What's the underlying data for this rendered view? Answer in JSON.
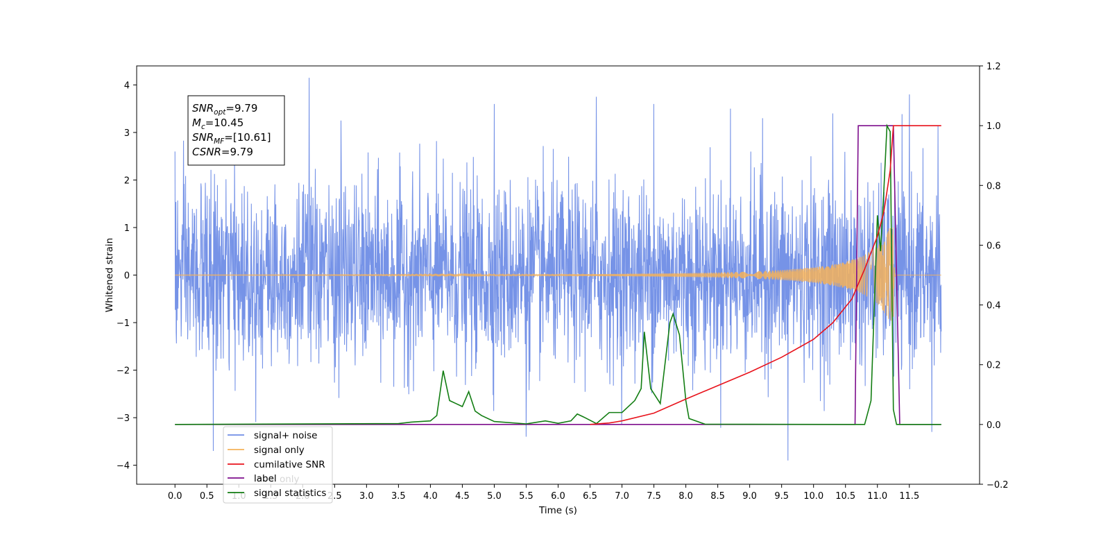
{
  "chart_data": {
    "type": "line",
    "title": "",
    "xlabel": "Time (s)",
    "ylabel": "Whitened strain",
    "xlim": [
      -0.6,
      12.6
    ],
    "ylim": [
      -4.4,
      4.4
    ],
    "y2lim": [
      -0.2,
      1.2
    ],
    "x_ticks": [
      0.0,
      0.5,
      1.0,
      1.5,
      2.0,
      2.5,
      3.0,
      3.5,
      4.0,
      4.5,
      5.0,
      5.5,
      6.0,
      6.5,
      7.0,
      7.5,
      8.0,
      8.5,
      9.0,
      9.5,
      10.0,
      10.5,
      11.0,
      11.5
    ],
    "x_tick_labels": [
      "0.0",
      "0.5",
      "1.0",
      "1.5",
      "2.0",
      "2.5",
      "3.0",
      "3.5",
      "4.0",
      "4.5",
      "5.0",
      "5.5",
      "6.0",
      "6.5",
      "7.0",
      "7.5",
      "8.0",
      "8.5",
      "9.0",
      "9.5",
      "10.0",
      "10.5",
      "11.0",
      "11.5"
    ],
    "y_ticks": [
      4,
      3,
      2,
      1,
      0,
      -1,
      -2,
      -3,
      -4
    ],
    "y_tick_labels": [
      "4",
      "3",
      "2",
      "1",
      "0",
      "−1",
      "−2",
      "−3",
      "−4"
    ],
    "y2_ticks": [
      1.2,
      1.0,
      0.8,
      0.6,
      0.4,
      0.2,
      0.0,
      -0.2
    ],
    "y2_tick_labels": [
      "1.2",
      "1.0",
      "0.8",
      "0.6",
      "0.4",
      "0.2",
      "0.0",
      "−0.2"
    ],
    "annotation": {
      "lines": [
        {
          "main": "SNR",
          "sub": "opt",
          "rest": "=9.79"
        },
        {
          "main": "M",
          "sub": "c",
          "rest": "=10.45"
        },
        {
          "main": "SNR",
          "sub": "MF",
          "rest": "=[10.61]"
        },
        {
          "main": "CSNR",
          "sub": "",
          "rest": "=9.79"
        }
      ]
    },
    "legend_position": "lower-left",
    "series": [
      {
        "name": "signal+ noise",
        "axis": "left",
        "color": "#6f8de6",
        "noise_std": 0.95,
        "t_start": 0.0,
        "t_end": 12.0,
        "spikes": [
          [
            0.0,
            2.6
          ],
          [
            0.6,
            -3.7
          ],
          [
            2.1,
            4.15
          ],
          [
            2.6,
            3.25
          ],
          [
            5.0,
            3.6
          ],
          [
            5.5,
            -3.4
          ],
          [
            6.6,
            3.75
          ],
          [
            7.5,
            3.6
          ],
          [
            8.7,
            3.5
          ],
          [
            9.2,
            3.3
          ],
          [
            9.6,
            -3.9
          ],
          [
            10.3,
            3.4
          ],
          [
            11.5,
            3.8
          ],
          [
            11.85,
            -3.3
          ],
          [
            11.95,
            3.15
          ]
        ]
      },
      {
        "name": "signal only",
        "axis": "left",
        "color": "#f5b25a",
        "t_merger": 11.25,
        "amplitude_at_merger": 1.6,
        "t_end": 12.0
      },
      {
        "name": "cumilative SNR",
        "axis": "right",
        "color": "#e8121b",
        "points": [
          [
            6.5,
            0.0
          ],
          [
            6.8,
            0.005
          ],
          [
            7.0,
            0.012
          ],
          [
            7.5,
            0.038
          ],
          [
            8.0,
            0.085
          ],
          [
            8.5,
            0.13
          ],
          [
            9.0,
            0.175
          ],
          [
            9.5,
            0.225
          ],
          [
            10.0,
            0.285
          ],
          [
            10.3,
            0.34
          ],
          [
            10.6,
            0.42
          ],
          [
            10.8,
            0.52
          ],
          [
            11.0,
            0.63
          ],
          [
            11.1,
            0.71
          ],
          [
            11.2,
            0.85
          ],
          [
            11.25,
            1.0
          ],
          [
            11.35,
            1.0
          ],
          [
            12.0,
            1.0
          ]
        ]
      },
      {
        "name": "label",
        "axis": "right",
        "color": "#7d0d8c",
        "points": [
          [
            0.0,
            0.0
          ],
          [
            10.65,
            0.0
          ],
          [
            10.7,
            1.0
          ],
          [
            11.25,
            1.0
          ],
          [
            11.35,
            0.0
          ],
          [
            12.0,
            0.0
          ]
        ]
      },
      {
        "name": "signal statistics",
        "axis": "right",
        "color": "#127d12",
        "points": [
          [
            0.0,
            0.0
          ],
          [
            3.5,
            0.003
          ],
          [
            3.7,
            0.008
          ],
          [
            3.85,
            0.01
          ],
          [
            4.0,
            0.012
          ],
          [
            4.1,
            0.03
          ],
          [
            4.2,
            0.18
          ],
          [
            4.3,
            0.08
          ],
          [
            4.4,
            0.07
          ],
          [
            4.5,
            0.06
          ],
          [
            4.6,
            0.11
          ],
          [
            4.7,
            0.045
          ],
          [
            4.8,
            0.03
          ],
          [
            5.0,
            0.01
          ],
          [
            5.5,
            0.002
          ],
          [
            5.8,
            0.012
          ],
          [
            6.0,
            0.004
          ],
          [
            6.2,
            0.012
          ],
          [
            6.3,
            0.035
          ],
          [
            6.4,
            0.025
          ],
          [
            6.6,
            0.003
          ],
          [
            6.8,
            0.04
          ],
          [
            7.0,
            0.04
          ],
          [
            7.2,
            0.08
          ],
          [
            7.3,
            0.12
          ],
          [
            7.35,
            0.31
          ],
          [
            7.45,
            0.12
          ],
          [
            7.6,
            0.07
          ],
          [
            7.75,
            0.34
          ],
          [
            7.8,
            0.37
          ],
          [
            7.9,
            0.3
          ],
          [
            8.0,
            0.08
          ],
          [
            8.05,
            0.02
          ],
          [
            8.3,
            0.001
          ],
          [
            10.8,
            0.0
          ],
          [
            10.9,
            0.08
          ],
          [
            11.0,
            0.7
          ],
          [
            11.05,
            0.58
          ],
          [
            11.1,
            0.78
          ],
          [
            11.15,
            1.0
          ],
          [
            11.2,
            0.98
          ],
          [
            11.25,
            0.05
          ],
          [
            11.3,
            0.0
          ],
          [
            12.0,
            0.0
          ]
        ]
      },
      {
        "name": "label only",
        "axis": "right",
        "color": "#b0b0b0",
        "legend_only": true
      }
    ]
  }
}
